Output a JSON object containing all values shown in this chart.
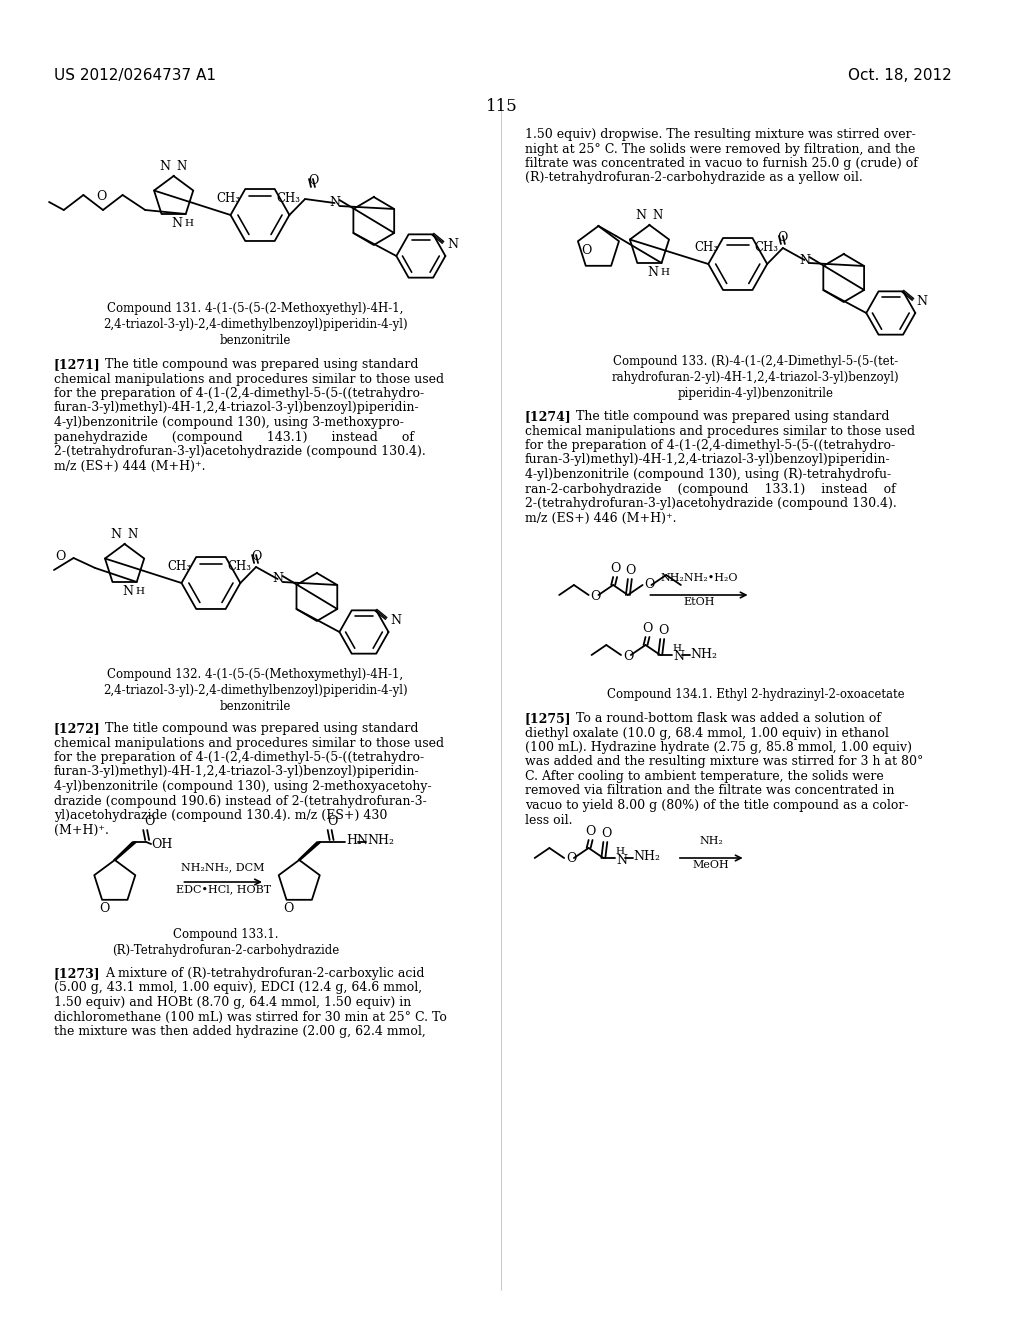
{
  "header_left": "US 2012/0264737 A1",
  "header_right": "Oct. 18, 2012",
  "page_number": "115",
  "bg": "#ffffff",
  "tc": "#000000"
}
